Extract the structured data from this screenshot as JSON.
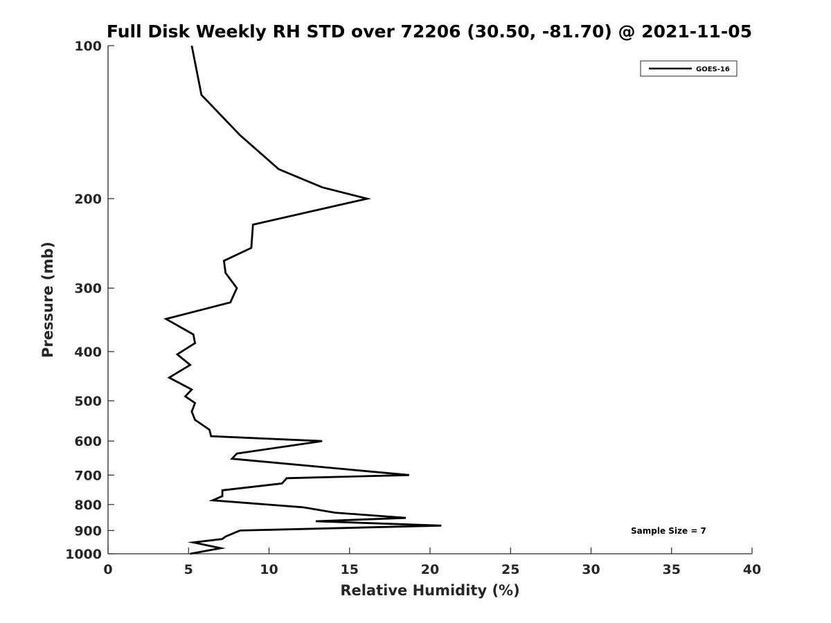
{
  "chart_data": {
    "type": "line",
    "title": "Full Disk Weekly RH STD over 72206 (30.50, -81.70) @ 2021-11-05",
    "xlabel": "Relative Humidity (%)",
    "ylabel": "Pressure (mb)",
    "xlim": [
      0,
      40
    ],
    "ylim": [
      100,
      1000
    ],
    "yscale": "log",
    "yreversed": true,
    "xticks": [
      0,
      5,
      10,
      15,
      20,
      25,
      30,
      35,
      40
    ],
    "yticks": [
      100,
      200,
      300,
      400,
      500,
      600,
      700,
      800,
      900,
      1000
    ],
    "grid": false,
    "legend_position": "top-right",
    "series": [
      {
        "name": "GOES-16",
        "color": "#000000",
        "points": [
          [
            5.2,
            100
          ],
          [
            5.8,
            125
          ],
          [
            8.2,
            150
          ],
          [
            10.6,
            175
          ],
          [
            13.3,
            190
          ],
          [
            16.1,
            200
          ],
          [
            9.0,
            225
          ],
          [
            8.9,
            250
          ],
          [
            7.2,
            265
          ],
          [
            7.3,
            280
          ],
          [
            8.0,
            300
          ],
          [
            7.6,
            320
          ],
          [
            3.6,
            345
          ],
          [
            5.3,
            370
          ],
          [
            5.4,
            385
          ],
          [
            4.3,
            405
          ],
          [
            5.1,
            425
          ],
          [
            3.8,
            450
          ],
          [
            5.2,
            475
          ],
          [
            4.8,
            490
          ],
          [
            5.4,
            505
          ],
          [
            5.2,
            525
          ],
          [
            5.4,
            545
          ],
          [
            6.3,
            570
          ],
          [
            6.4,
            587
          ],
          [
            13.3,
            600
          ],
          [
            8.0,
            635
          ],
          [
            7.7,
            650
          ],
          [
            18.7,
            700
          ],
          [
            11.1,
            710
          ],
          [
            10.8,
            727
          ],
          [
            7.1,
            750
          ],
          [
            7.1,
            770
          ],
          [
            6.5,
            785
          ],
          [
            12.1,
            810
          ],
          [
            14.1,
            830
          ],
          [
            18.5,
            850
          ],
          [
            12.9,
            863
          ],
          [
            20.7,
            880
          ],
          [
            8.2,
            900
          ],
          [
            7.3,
            925
          ],
          [
            7.1,
            935
          ],
          [
            5.3,
            950
          ],
          [
            7.0,
            975
          ],
          [
            5.1,
            1000
          ]
        ]
      }
    ],
    "annotations": [
      "Sample Size = 7"
    ]
  }
}
